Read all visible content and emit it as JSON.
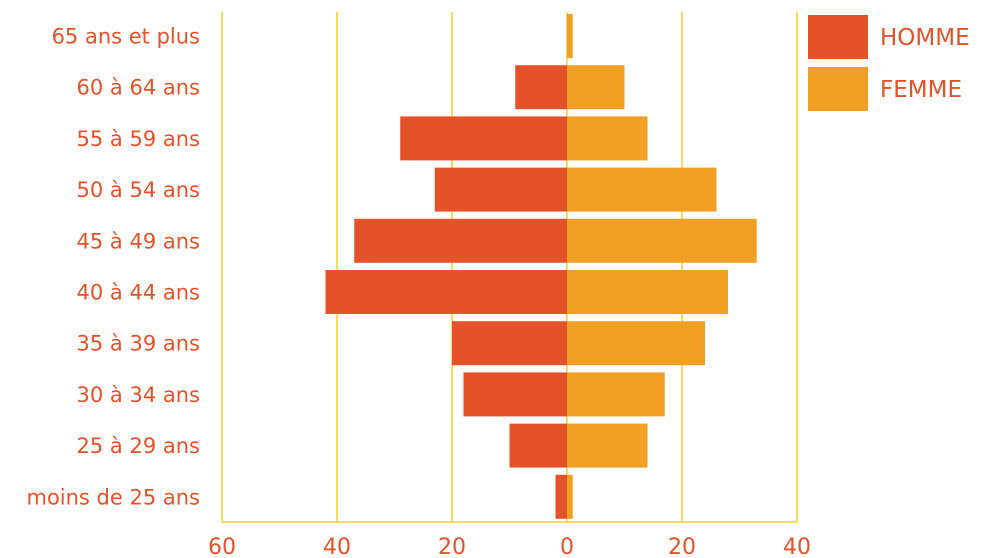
{
  "chart_data": {
    "type": "bar",
    "orientation": "horizontal",
    "layout": "population-pyramid",
    "categories": [
      "65 ans et plus",
      "60 à 64 ans",
      "55 à 59 ans",
      "50 à 54 ans",
      "45 à 49 ans",
      "40 à 44 ans",
      "35 à 39 ans",
      "30 à 34 ans",
      "25 à 29 ans",
      "moins de 25 ans"
    ],
    "series": [
      {
        "name": "HOMME",
        "color": "#e4522a",
        "side": "left",
        "values": [
          0,
          9,
          29,
          23,
          37,
          42,
          20,
          18,
          10,
          2
        ]
      },
      {
        "name": "FEMME",
        "color": "#f2a024",
        "side": "right",
        "values": [
          1,
          10,
          14,
          26,
          33,
          28,
          24,
          17,
          14,
          1
        ]
      }
    ],
    "x_ticks": [
      "60",
      "40",
      "20",
      "0",
      "20",
      "40"
    ],
    "xlim": [
      -60,
      40
    ],
    "grid": true,
    "grid_color": "#f5cf2a",
    "text_color": "#e4522a",
    "legend_position": "top-right",
    "title": "",
    "xlabel": "",
    "ylabel": ""
  }
}
